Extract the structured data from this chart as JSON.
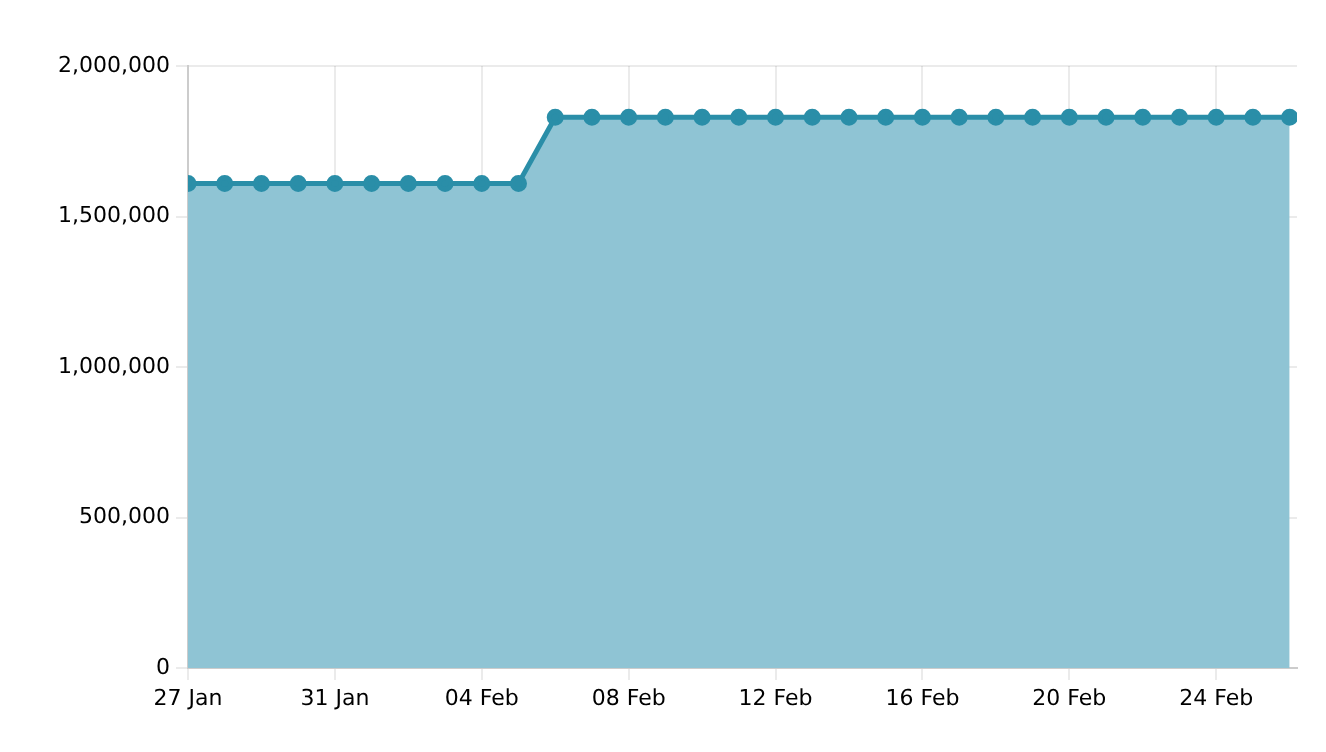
{
  "chart_data": {
    "type": "area",
    "x": [
      "--01-27",
      "--01-28",
      "--01-29",
      "--01-30",
      "--01-31",
      "--02-01",
      "--02-02",
      "--02-03",
      "--02-04",
      "--02-05",
      "--02-06",
      "--02-07",
      "--02-08",
      "--02-09",
      "--02-10",
      "--02-11",
      "--02-12",
      "--02-13",
      "--02-14",
      "--02-15",
      "--02-16",
      "--02-17",
      "--02-18",
      "--02-19",
      "--02-20",
      "--02-21",
      "--02-22",
      "--02-23",
      "--02-24",
      "--02-25",
      "--02-26"
    ],
    "series": [
      {
        "color": "#2a8ea8",
        "values": [
          1610000,
          1610000,
          1610000,
          1610000,
          1610000,
          1610000,
          1610000,
          1610000,
          1610000,
          1610000,
          1830000,
          1830000,
          1830000,
          1830000,
          1830000,
          1830000,
          1830000,
          1830000,
          1830000,
          1830000,
          1830000,
          1830000,
          1830000,
          1830000,
          1830000,
          1830000,
          1830000,
          1830000,
          1830000,
          1830000,
          1830000
        ]
      }
    ],
    "xlim": [
      "--01-27",
      "--02-26"
    ],
    "xticks": [
      {
        "value": "--01-27",
        "label": "27 Jan"
      },
      {
        "value": "--01-31",
        "label": "31 Jan"
      },
      {
        "value": "--02-04",
        "label": "04 Feb"
      },
      {
        "value": "--02-08",
        "label": "08 Feb"
      },
      {
        "value": "--02-12",
        "label": "12 Feb"
      },
      {
        "value": "--02-16",
        "label": "16 Feb"
      },
      {
        "value": "--02-20",
        "label": "20 Feb"
      },
      {
        "value": "--02-24",
        "label": "24 Feb"
      }
    ],
    "ylim": [
      0,
      2000000
    ],
    "yticks": [
      0,
      {
        "value": 500000,
        "label": "500,000"
      },
      {
        "value": 1000000,
        "label": "1,000,000"
      },
      {
        "value": 1500000,
        "label": "1,500,000"
      },
      {
        "value": 2000000,
        "label": "2,000,000"
      }
    ],
    "grid": true,
    "marker": "circle",
    "line_style": "solid"
  }
}
